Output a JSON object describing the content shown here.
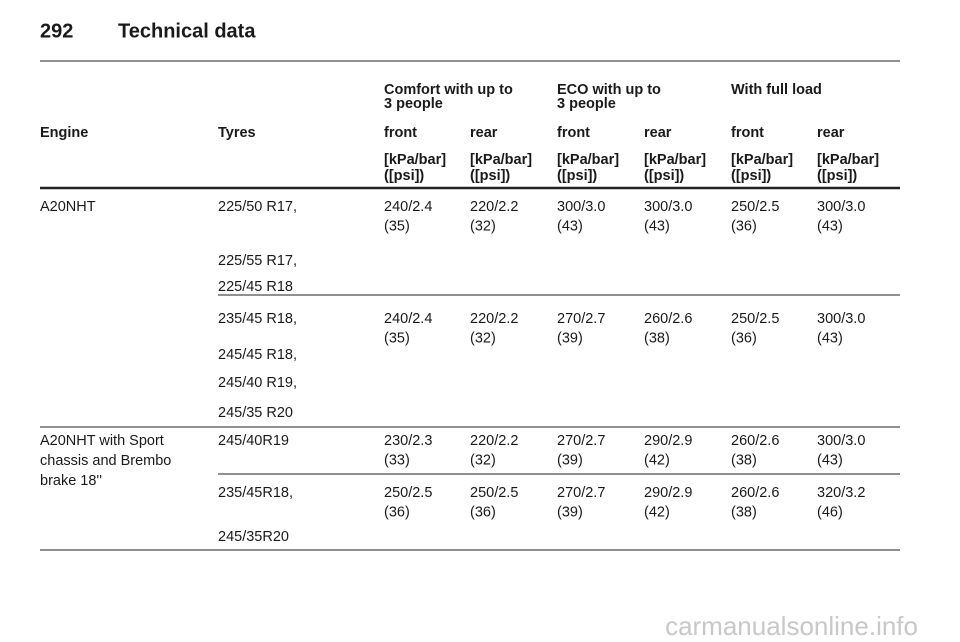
{
  "header": {
    "page": "292",
    "title": "Technical data"
  },
  "table": {
    "group_headers": [
      [
        "Comfort with up to",
        "3 people"
      ],
      [
        "ECO with up to",
        "3 people"
      ],
      [
        "With full load"
      ]
    ],
    "columns": [
      "Engine",
      "Tyres",
      "front",
      "rear",
      "front",
      "rear",
      "front",
      "rear"
    ],
    "units": [
      [
        "[kPa/bar]",
        "([psi])"
      ],
      [
        "[kPa/bar]",
        "([psi])"
      ],
      [
        "[kPa/bar]",
        "([psi])"
      ],
      [
        "[kPa/bar]",
        "([psi])"
      ],
      [
        "[kPa/bar]",
        "([psi])"
      ],
      [
        "[kPa/bar]",
        "([psi])"
      ]
    ],
    "engines": [
      {
        "name": [
          "A20NHT"
        ],
        "rows": [
          {
            "tyres": [
              "225/50 R17,",
              "225/55 R17,",
              "225/45 R18"
            ],
            "values": [
              [
                "240/2.4",
                "(35)"
              ],
              [
                "220/2.2",
                "(32)"
              ],
              [
                "300/3.0",
                "(43)"
              ],
              [
                "300/3.0",
                "(43)"
              ],
              [
                "250/2.5",
                "(36)"
              ],
              [
                "300/3.0",
                "(43)"
              ]
            ]
          },
          {
            "tyres": [
              "235/45 R18,",
              "245/45 R18,",
              "245/40 R19,",
              "245/35 R20"
            ],
            "values": [
              [
                "240/2.4",
                "(35)"
              ],
              [
                "220/2.2",
                "(32)"
              ],
              [
                "270/2.7",
                "(39)"
              ],
              [
                "260/2.6",
                "(38)"
              ],
              [
                "250/2.5",
                "(36)"
              ],
              [
                "300/3.0",
                "(43)"
              ]
            ]
          }
        ]
      },
      {
        "name": [
          "A20NHT with Sport",
          "chassis and Brembo",
          "brake 18''"
        ],
        "rows": [
          {
            "tyres": [
              "245/40R19"
            ],
            "values": [
              [
                "230/2.3",
                "(33)"
              ],
              [
                "220/2.2",
                "(32)"
              ],
              [
                "270/2.7",
                "(39)"
              ],
              [
                "290/2.9",
                "(42)"
              ],
              [
                "260/2.6",
                "(38)"
              ],
              [
                "300/3.0",
                "(43)"
              ]
            ]
          },
          {
            "tyres": [
              "235/45R18,",
              "245/35R20"
            ],
            "values": [
              [
                "250/2.5",
                "(36)"
              ],
              [
                "250/2.5",
                "(36)"
              ],
              [
                "270/2.7",
                "(39)"
              ],
              [
                "290/2.9",
                "(42)"
              ],
              [
                "260/2.6",
                "(38)"
              ],
              [
                "320/3.2",
                "(46)"
              ]
            ]
          }
        ]
      }
    ]
  },
  "footer": {
    "watermark": "carmanualsonline.info"
  }
}
